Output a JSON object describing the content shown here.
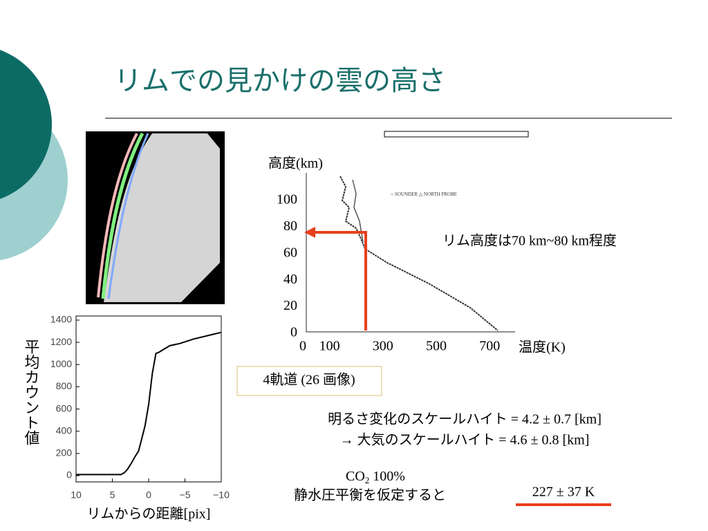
{
  "title": "リムでの見かけの雲の高さ",
  "profile": {
    "ylabel": "高度(km)",
    "yticks": [
      0,
      20,
      40,
      60,
      80,
      100
    ],
    "xticks": [
      0,
      100,
      300,
      500,
      700
    ],
    "xlabel": "温度(K)",
    "annotation": "リム高度は70 km~80 km程度"
  },
  "orbit_note": "4軌道 (26 画像)",
  "scale_height": [
    "明るさ変化のスケールハイト = 4.2 ± 0.7 [km]",
    "→ 大気のスケールハイト = 4.6 ± 0.8 [km]"
  ],
  "co2": {
    "base": "CO",
    "sub": "2",
    "rest": " 100%"
  },
  "hydrostatic": "静水圧平衡を仮定すると",
  "result": "227 ± 37 K",
  "count_chart": {
    "type": "line",
    "ylabel": "平均カウント値",
    "xlabel": "リムからの距離[pix]",
    "xlim": [
      10,
      -10
    ],
    "ylim": [
      0,
      1400
    ],
    "xticks": [
      10,
      5,
      0,
      {
        "value": -5,
        "label": "−5"
      },
      {
        "value": -10,
        "label": "−10"
      }
    ],
    "yticks": [
      0,
      200,
      400,
      600,
      800,
      1000,
      1200,
      1400
    ],
    "color": "#000000",
    "x": [
      10,
      3.8,
      3.3,
      2.9,
      2.4,
      1.9,
      1.4,
      1.0,
      0.5,
      0,
      -0.5,
      -1,
      -1.4,
      -1.9,
      -2.9,
      -4.3,
      -6.2,
      -8.1,
      -10
    ],
    "values": [
      10,
      10,
      30,
      60,
      110,
      170,
      220,
      320,
      450,
      640,
      920,
      1100,
      1110,
      1130,
      1170,
      1190,
      1230,
      1260,
      1290
    ]
  }
}
